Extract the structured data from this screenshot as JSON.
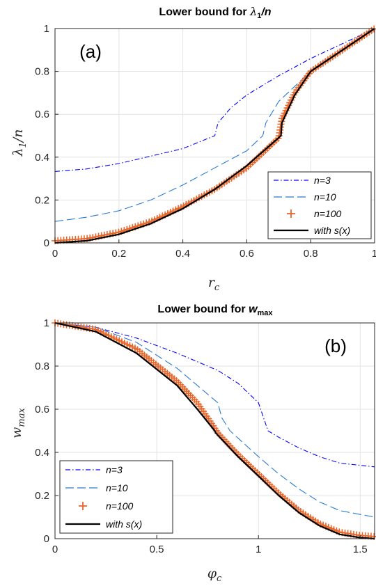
{
  "chart_data": [
    {
      "type": "line",
      "panel_label": "(a)",
      "title_main": "Lower bound for ",
      "title_math": "λ",
      "title_sub": "1",
      "title_tail": "/n",
      "xlabel_main": "r",
      "xlabel_sub": "c",
      "ylabel_main": "λ",
      "ylabel_sub": "1",
      "ylabel_tail": "/n",
      "xlim": [
        0,
        1
      ],
      "ylim": [
        0,
        1
      ],
      "xticks": [
        0,
        0.2,
        0.4,
        0.6,
        0.8,
        1
      ],
      "yticks": [
        0,
        0.2,
        0.4,
        0.6,
        0.8,
        1
      ],
      "xtick_labels": [
        "0",
        "0.2",
        "0.4",
        "0.6",
        "0.8",
        "1"
      ],
      "ytick_labels": [
        "0",
        "0.2",
        "0.4",
        "0.6",
        "0.8",
        "1"
      ],
      "grid": true,
      "legend_position": "bottom-right",
      "series": [
        {
          "name": "n=3",
          "style": "dashdot",
          "color": "#0000ff",
          "x": [
            0,
            0.1,
            0.2,
            0.3,
            0.4,
            0.45,
            0.5,
            0.51,
            0.55,
            0.6,
            0.7,
            0.8,
            0.9,
            1.0
          ],
          "y": [
            0.333,
            0.345,
            0.37,
            0.405,
            0.44,
            0.47,
            0.5,
            0.56,
            0.63,
            0.69,
            0.78,
            0.86,
            0.93,
            1.0
          ]
        },
        {
          "name": "n=10",
          "style": "dashed",
          "color": "#2b7bd4",
          "x": [
            0,
            0.1,
            0.2,
            0.3,
            0.4,
            0.5,
            0.6,
            0.65,
            0.66,
            0.7,
            0.8,
            0.9,
            1.0
          ],
          "y": [
            0.1,
            0.12,
            0.15,
            0.2,
            0.27,
            0.35,
            0.43,
            0.5,
            0.56,
            0.66,
            0.8,
            0.9,
            1.0
          ]
        },
        {
          "name": "n=100",
          "style": "markers",
          "color": "#e8662a",
          "x": [
            0,
            0.1,
            0.2,
            0.3,
            0.4,
            0.5,
            0.6,
            0.7,
            0.71,
            0.75,
            0.8,
            0.9,
            1.0
          ],
          "y": [
            0.01,
            0.02,
            0.05,
            0.1,
            0.17,
            0.25,
            0.35,
            0.49,
            0.58,
            0.7,
            0.8,
            0.9,
            1.0
          ]
        },
        {
          "name": "with s(x)",
          "style": "solid",
          "color": "#000000",
          "x": [
            0,
            0.1,
            0.2,
            0.3,
            0.4,
            0.5,
            0.6,
            0.707,
            0.71,
            0.75,
            0.8,
            0.9,
            1.0
          ],
          "y": [
            0,
            0.01,
            0.04,
            0.09,
            0.16,
            0.25,
            0.36,
            0.5,
            0.56,
            0.69,
            0.8,
            0.9,
            1.0
          ]
        }
      ]
    },
    {
      "type": "line",
      "panel_label": "(b)",
      "title_main": "Lower bound for ",
      "title_math": "w",
      "title_sub": "max",
      "title_tail": "",
      "xlabel_main": "φ",
      "xlabel_sub": "c",
      "ylabel_main": "w",
      "ylabel_sub": "max",
      "ylabel_tail": "",
      "xlim": [
        0,
        1.5708
      ],
      "ylim": [
        0,
        1
      ],
      "xticks": [
        0,
        0.5,
        1,
        1.5
      ],
      "yticks": [
        0,
        0.2,
        0.4,
        0.6,
        0.8,
        1
      ],
      "xtick_labels": [
        "0",
        "0.5",
        "1",
        "1.5"
      ],
      "ytick_labels": [
        "0",
        "0.2",
        "0.4",
        "0.6",
        "0.8",
        "1"
      ],
      "grid": true,
      "legend_position": "bottom-left",
      "series": [
        {
          "name": "n=3",
          "style": "dashdot",
          "color": "#0000ff",
          "x": [
            0,
            0.2,
            0.4,
            0.6,
            0.8,
            0.9,
            1.0,
            1.047,
            1.1,
            1.2,
            1.3,
            1.4,
            1.5708
          ],
          "y": [
            1.0,
            0.98,
            0.93,
            0.86,
            0.78,
            0.72,
            0.63,
            0.5,
            0.47,
            0.42,
            0.38,
            0.35,
            0.333
          ]
        },
        {
          "name": "n=10",
          "style": "dashed",
          "color": "#2b7bd4",
          "x": [
            0,
            0.2,
            0.4,
            0.6,
            0.7,
            0.8,
            0.82,
            0.86,
            1.0,
            1.1,
            1.2,
            1.3,
            1.4,
            1.5708
          ],
          "y": [
            1.0,
            0.98,
            0.91,
            0.79,
            0.71,
            0.63,
            0.56,
            0.5,
            0.38,
            0.3,
            0.23,
            0.17,
            0.13,
            0.1
          ]
        },
        {
          "name": "n=100",
          "style": "markers",
          "color": "#e8662a",
          "x": [
            0,
            0.2,
            0.4,
            0.6,
            0.7,
            0.78,
            0.8,
            0.9,
            1.0,
            1.1,
            1.2,
            1.3,
            1.4,
            1.5,
            1.5708
          ],
          "y": [
            1.0,
            0.97,
            0.88,
            0.73,
            0.63,
            0.52,
            0.49,
            0.39,
            0.3,
            0.21,
            0.13,
            0.07,
            0.03,
            0.015,
            0.01
          ]
        },
        {
          "name": "with s(x)",
          "style": "solid",
          "color": "#000000",
          "x": [
            0,
            0.2,
            0.4,
            0.6,
            0.7,
            0.785,
            0.79,
            0.9,
            1.0,
            1.1,
            1.2,
            1.3,
            1.4,
            1.5,
            1.5708
          ],
          "y": [
            1.0,
            0.96,
            0.86,
            0.71,
            0.6,
            0.5,
            0.49,
            0.38,
            0.29,
            0.2,
            0.12,
            0.06,
            0.02,
            0.005,
            0.0
          ]
        }
      ]
    }
  ]
}
